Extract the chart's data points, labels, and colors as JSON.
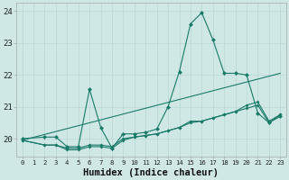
{
  "xlabel": "Humidex (Indice chaleur)",
  "bg_color": "#cfe8e6",
  "grid_color": "#b8d8d5",
  "line_color": "#1a7a6a",
  "xlim": [
    -0.5,
    23.5
  ],
  "ylim": [
    19.45,
    24.25
  ],
  "yticks": [
    20,
    21,
    22,
    23,
    24
  ],
  "xticks": [
    0,
    1,
    2,
    3,
    4,
    5,
    6,
    7,
    8,
    9,
    10,
    11,
    12,
    13,
    14,
    15,
    16,
    17,
    18,
    19,
    20,
    21,
    22,
    23
  ],
  "series": [
    {
      "x": [
        0,
        2,
        3,
        4,
        5,
        6,
        7,
        8,
        9,
        10,
        11,
        12,
        13,
        14,
        15,
        16,
        17,
        18,
        19,
        20,
        21,
        22,
        23
      ],
      "y": [
        20.0,
        20.05,
        20.05,
        19.75,
        19.75,
        21.55,
        20.35,
        19.7,
        20.15,
        20.15,
        20.2,
        20.3,
        21.0,
        22.1,
        23.6,
        23.95,
        23.1,
        22.05,
        22.05,
        22.0,
        20.8,
        20.5,
        20.7
      ],
      "marker": true,
      "markersize": 2.5
    },
    {
      "x": [
        0,
        23
      ],
      "y": [
        19.95,
        22.05
      ],
      "marker": false,
      "markersize": 0
    },
    {
      "x": [
        0,
        2,
        3,
        4,
        5,
        6,
        7,
        8,
        9,
        10,
        11,
        12,
        13,
        14,
        15,
        16,
        17,
        18,
        19,
        20,
        21,
        22,
        23
      ],
      "y": [
        19.95,
        19.8,
        19.8,
        19.65,
        19.65,
        19.75,
        19.75,
        19.7,
        19.95,
        20.05,
        20.1,
        20.15,
        20.25,
        20.35,
        20.5,
        20.55,
        20.65,
        20.75,
        20.85,
        20.95,
        21.05,
        20.5,
        20.75
      ],
      "marker": true,
      "markersize": 2.0
    },
    {
      "x": [
        0,
        2,
        3,
        4,
        5,
        6,
        7,
        8,
        9,
        10,
        11,
        12,
        13,
        14,
        15,
        16,
        17,
        18,
        19,
        20,
        21,
        22,
        23
      ],
      "y": [
        19.95,
        19.8,
        19.8,
        19.7,
        19.7,
        19.8,
        19.8,
        19.75,
        20.0,
        20.05,
        20.1,
        20.15,
        20.25,
        20.35,
        20.55,
        20.55,
        20.65,
        20.75,
        20.85,
        21.05,
        21.15,
        20.55,
        20.75
      ],
      "marker": true,
      "markersize": 2.0
    }
  ]
}
